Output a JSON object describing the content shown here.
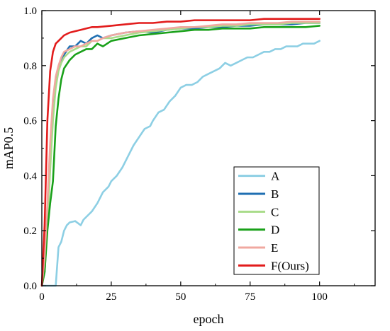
{
  "chart_data": {
    "type": "line",
    "xlabel": "epoch",
    "ylabel": "mAP0.5",
    "xlim": [
      0,
      120
    ],
    "ylim": [
      0,
      1.0
    ],
    "xticks": [
      0,
      25,
      50,
      75,
      100
    ],
    "yticks": [
      0.0,
      0.2,
      0.4,
      0.6,
      0.8,
      1.0
    ],
    "xtick_labels": [
      "0",
      "25",
      "50",
      "75",
      "100"
    ],
    "ytick_labels": [
      "0.0",
      "0.2",
      "0.4",
      "0.6",
      "0.8",
      "1.0"
    ],
    "grid": false,
    "legend_position": "bottom-right",
    "series": [
      {
        "name": "A",
        "color": "#8dcfe4",
        "x": [
          0,
          5,
          6,
          7,
          8,
          9,
          10,
          12,
          14,
          15,
          18,
          20,
          22,
          24,
          25,
          27,
          29,
          31,
          33,
          35,
          37,
          39,
          40,
          42,
          44,
          46,
          48,
          50,
          52,
          54,
          56,
          58,
          60,
          62,
          64,
          66,
          68,
          70,
          72,
          74,
          76,
          78,
          80,
          82,
          84,
          86,
          88,
          90,
          92,
          94,
          96,
          98,
          100
        ],
        "y": [
          0.0,
          0.0,
          0.14,
          0.16,
          0.2,
          0.22,
          0.23,
          0.235,
          0.22,
          0.24,
          0.27,
          0.3,
          0.34,
          0.36,
          0.38,
          0.4,
          0.43,
          0.47,
          0.51,
          0.54,
          0.57,
          0.58,
          0.6,
          0.63,
          0.64,
          0.67,
          0.69,
          0.72,
          0.73,
          0.73,
          0.74,
          0.76,
          0.77,
          0.78,
          0.79,
          0.81,
          0.8,
          0.81,
          0.82,
          0.83,
          0.83,
          0.84,
          0.85,
          0.85,
          0.86,
          0.86,
          0.87,
          0.87,
          0.87,
          0.88,
          0.88,
          0.88,
          0.89
        ]
      },
      {
        "name": "B",
        "color": "#1f6fb2",
        "x": [
          0,
          1,
          2,
          3,
          4,
          5,
          6,
          7,
          8,
          10,
          12,
          14,
          16,
          18,
          20,
          22,
          25,
          30,
          35,
          40,
          45,
          50,
          55,
          60,
          65,
          70,
          75,
          80,
          85,
          90,
          95,
          100
        ],
        "y": [
          0.0,
          0.05,
          0.25,
          0.45,
          0.62,
          0.73,
          0.79,
          0.82,
          0.84,
          0.87,
          0.87,
          0.89,
          0.88,
          0.9,
          0.91,
          0.9,
          0.91,
          0.92,
          0.925,
          0.92,
          0.93,
          0.935,
          0.935,
          0.94,
          0.94,
          0.945,
          0.945,
          0.95,
          0.95,
          0.95,
          0.955,
          0.955
        ]
      },
      {
        "name": "C",
        "color": "#a9dc8a",
        "x": [
          0,
          1,
          2,
          3,
          4,
          5,
          6,
          7,
          8,
          10,
          12,
          14,
          16,
          18,
          20,
          22,
          25,
          30,
          35,
          40,
          45,
          50,
          55,
          60,
          65,
          70,
          75,
          80,
          85,
          90,
          95,
          100
        ],
        "y": [
          0.0,
          0.05,
          0.22,
          0.42,
          0.6,
          0.72,
          0.78,
          0.81,
          0.83,
          0.85,
          0.86,
          0.87,
          0.87,
          0.89,
          0.89,
          0.9,
          0.9,
          0.91,
          0.92,
          0.925,
          0.93,
          0.935,
          0.94,
          0.94,
          0.945,
          0.945,
          0.95,
          0.95,
          0.95,
          0.955,
          0.955,
          0.955
        ]
      },
      {
        "name": "D",
        "color": "#1aa11a",
        "x": [
          0,
          1,
          2,
          3,
          4,
          5,
          6,
          7,
          8,
          10,
          12,
          14,
          16,
          18,
          20,
          22,
          25,
          30,
          35,
          40,
          45,
          50,
          55,
          60,
          65,
          70,
          75,
          80,
          85,
          90,
          95,
          100
        ],
        "y": [
          0.0,
          0.05,
          0.2,
          0.3,
          0.38,
          0.58,
          0.68,
          0.75,
          0.79,
          0.82,
          0.84,
          0.85,
          0.86,
          0.86,
          0.88,
          0.87,
          0.89,
          0.9,
          0.91,
          0.915,
          0.92,
          0.925,
          0.93,
          0.93,
          0.935,
          0.935,
          0.935,
          0.94,
          0.94,
          0.94,
          0.94,
          0.945
        ]
      },
      {
        "name": "E",
        "color": "#f0a8a0",
        "x": [
          0,
          1,
          2,
          3,
          4,
          5,
          6,
          7,
          8,
          10,
          12,
          14,
          16,
          18,
          20,
          22,
          25,
          30,
          35,
          40,
          45,
          50,
          55,
          60,
          65,
          70,
          75,
          80,
          85,
          90,
          95,
          100
        ],
        "y": [
          0.0,
          0.1,
          0.3,
          0.52,
          0.68,
          0.76,
          0.8,
          0.83,
          0.85,
          0.86,
          0.87,
          0.87,
          0.88,
          0.89,
          0.89,
          0.9,
          0.91,
          0.92,
          0.925,
          0.93,
          0.935,
          0.94,
          0.94,
          0.945,
          0.95,
          0.95,
          0.955,
          0.955,
          0.955,
          0.96,
          0.96,
          0.96
        ]
      },
      {
        "name": "F(Ours)",
        "color": "#e21c1c",
        "x": [
          0,
          1,
          2,
          3,
          4,
          5,
          6,
          7,
          8,
          10,
          12,
          14,
          16,
          18,
          20,
          25,
          30,
          35,
          40,
          45,
          50,
          55,
          60,
          65,
          70,
          75,
          80,
          85,
          90,
          95,
          100
        ],
        "y": [
          0.0,
          0.22,
          0.6,
          0.78,
          0.85,
          0.88,
          0.89,
          0.9,
          0.91,
          0.92,
          0.925,
          0.93,
          0.935,
          0.94,
          0.94,
          0.945,
          0.95,
          0.955,
          0.955,
          0.96,
          0.96,
          0.965,
          0.965,
          0.965,
          0.965,
          0.965,
          0.97,
          0.97,
          0.97,
          0.97,
          0.97
        ]
      }
    ]
  }
}
